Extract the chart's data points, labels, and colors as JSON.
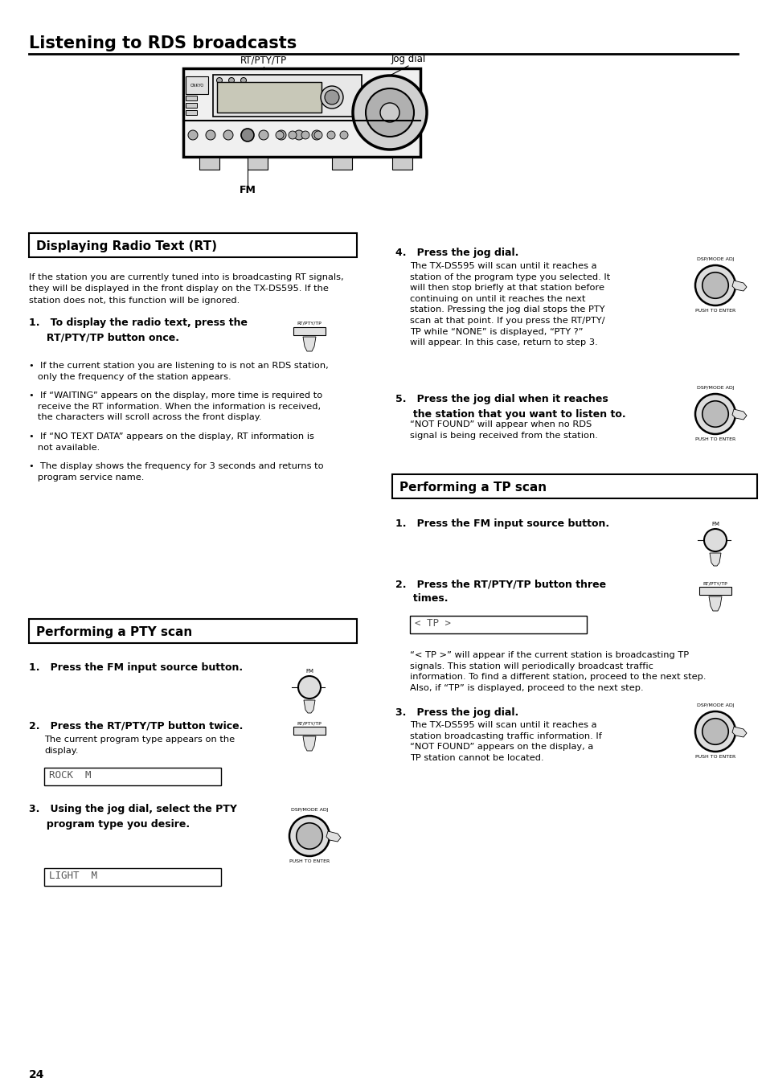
{
  "title": "Listening to RDS broadcasts",
  "page_number": "24",
  "bg_color": "#ffffff",
  "body_fs": 8.2,
  "bold_fs": 9.0,
  "section_fs": 11.0,
  "title_fs": 15.0,
  "section1_title": "Displaying Radio Text (RT)",
  "section2_title": "Performing a PTY scan",
  "section3_title": "Performing a TP scan",
  "rt_intro": "If the station you are currently tuned into is broadcasting RT signals,\nthey will be displayed in the front display on the TX-DS595. If the\nstation does not, this function will be ignored.",
  "rt_step1": "1.   To display the radio text, press the\n     RT/PTY/TP button once.",
  "rt_bullet1": "•  If the current station you are listening to is not an RDS station,\n   only the frequency of the station appears.",
  "rt_bullet2": "•  If “WAITING” appears on the display, more time is required to\n   receive the RT information. When the information is received,\n   the characters will scroll across the front display.",
  "rt_bullet3": "•  If “NO TEXT DATA” appears on the display, RT information is\n   not available.",
  "rt_bullet4": "•  The display shows the frequency for 3 seconds and returns to\n   program service name.",
  "rt_step4_title": "4.   Press the jog dial.",
  "rt_step4_text": "The TX-DS595 will scan until it reaches a\nstation of the program type you selected. It\nwill then stop briefly at that station before\ncontinuing on until it reaches the next\nstation. Pressing the jog dial stops the PTY\nscan at that point. If you press the RT/PTY/\nTP while “NONE” is displayed, “PTY ?”\nwill appear. In this case, return to step 3.",
  "rt_step5_title": "5.   Press the jog dial when it reaches\n     the station that you want to listen to.",
  "rt_step5_text": "“NOT FOUND” will appear when no RDS\nsignal is being received from the station.",
  "pty_step1": "1.   Press the FM input source button.",
  "pty_step2_title": "2.   Press the RT/PTY/TP button twice.",
  "pty_step2_text": "The current program type appears on the\ndisplay.",
  "pty_step3": "3.   Using the jog dial, select the PTY\n     program type you desire.",
  "pty_display1": "ROCK  M",
  "pty_display2": "LIGHT  M",
  "tp_step1": "1.   Press the FM input source button.",
  "tp_step2_title": "2.   Press the RT/PTY/TP button three\n     times.",
  "tp_step2_display": "< TP >",
  "tp_step2_text": "“< TP >” will appear if the current station is broadcasting TP\nsignals. This station will periodically broadcast traffic\ninformation. To find a different station, proceed to the next step.\nAlso, if “TP” is displayed, proceed to the next step.",
  "tp_step3_title": "3.   Press the jog dial.",
  "tp_step3_text": "The TX-DS595 will scan until it reaches a\nstation broadcasting traffic information. If\n“NOT FOUND” appears on the display, a\nTP station cannot be located.",
  "jog_label": "Jog dial",
  "rt_pty_tp_label": "RT/PTY/TP",
  "fm_label": "FM",
  "dsp_label": "DSP/MODE ADJ",
  "push_label": "PUSH TO ENTER"
}
